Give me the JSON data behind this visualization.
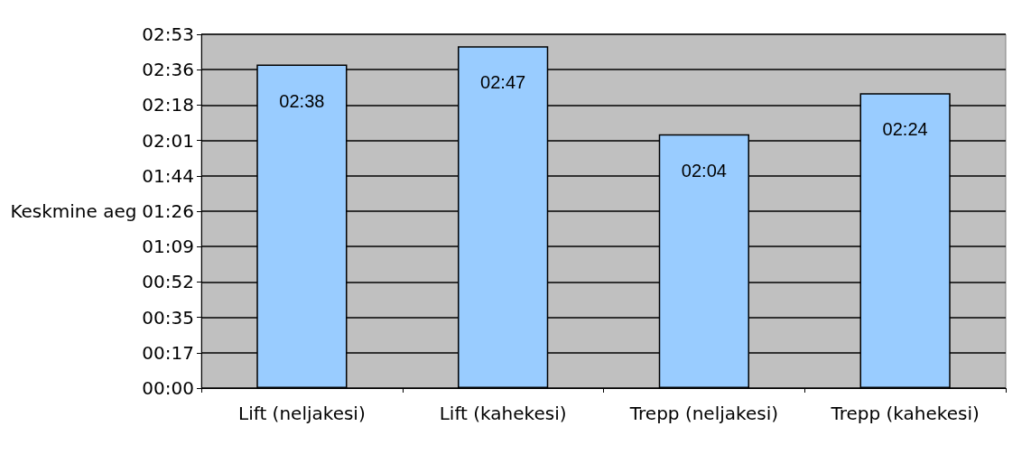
{
  "chart_data": {
    "type": "bar",
    "ylabel": "Keskmine aeg",
    "categories": [
      "Lift (neljakesi)",
      "Lift (kahekesi)",
      "Trepp (neljakesi)",
      "Trepp (kahekesi)"
    ],
    "values": [
      158,
      167,
      124,
      144
    ],
    "value_labels": [
      "02:38",
      "02:47",
      "02:04",
      "02:24"
    ],
    "color": "#99ccff",
    "ylim": [
      0,
      172.8
    ],
    "yticks": [
      {
        "value": 0,
        "label": "00:00"
      },
      {
        "value": 17.28,
        "label": "00:17"
      },
      {
        "value": 34.56,
        "label": "00:35"
      },
      {
        "value": 51.84,
        "label": "00:52"
      },
      {
        "value": 69.12,
        "label": "01:09"
      },
      {
        "value": 86.4,
        "label": "01:26"
      },
      {
        "value": 103.68,
        "label": "01:44"
      },
      {
        "value": 120.96,
        "label": "02:01"
      },
      {
        "value": 138.24,
        "label": "02:18"
      },
      {
        "value": 155.52,
        "label": "02:36"
      },
      {
        "value": 172.8,
        "label": "02:53"
      }
    ],
    "grid": true
  }
}
